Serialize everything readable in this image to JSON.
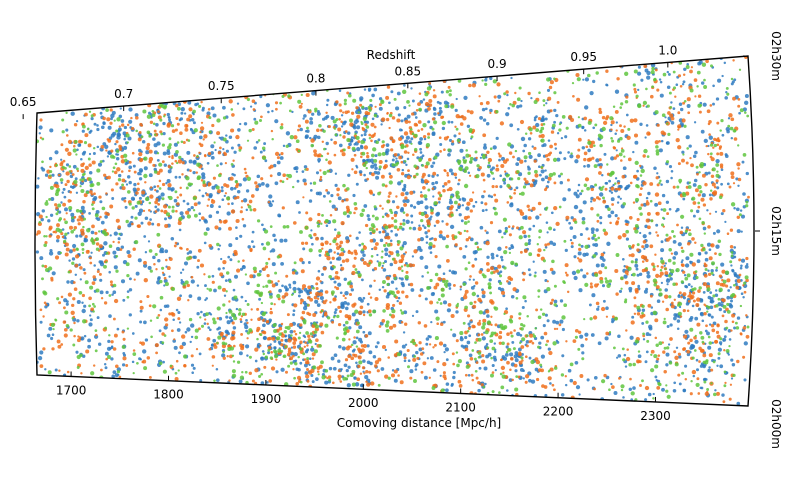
{
  "chart_data": {
    "type": "scatter",
    "xlabel": "Comoving distance [Mpc/h]",
    "top_axis_label": "Redshift",
    "right_axis_label": "",
    "xlim": [
      1665,
      2395
    ],
    "x_ticks": [
      1700,
      1800,
      1900,
      2000,
      2100,
      2200,
      2300
    ],
    "x_tick_labels": [
      "1700",
      "1800",
      "1900",
      "2000",
      "2100",
      "2200",
      "2300"
    ],
    "redshift_ticks": [
      0.65,
      0.7,
      0.75,
      0.8,
      0.85,
      0.9,
      0.95,
      1.0
    ],
    "redshift_tick_labels": [
      "0.65",
      "0.7",
      "0.75",
      "0.8",
      "0.85",
      "0.9",
      "0.95",
      "1.0"
    ],
    "ra_ticks_hours": [
      2.5,
      2.25,
      2.0
    ],
    "ra_tick_labels": [
      "02h30m",
      "02h15m",
      "02h00m"
    ],
    "grid": false,
    "series": [
      {
        "color": "#2f7bc1",
        "point_count": 2600
      },
      {
        "color": "#f0701c",
        "point_count": 2000
      },
      {
        "color": "#5fc63e",
        "point_count": 1300
      }
    ],
    "seed": 20240611
  }
}
